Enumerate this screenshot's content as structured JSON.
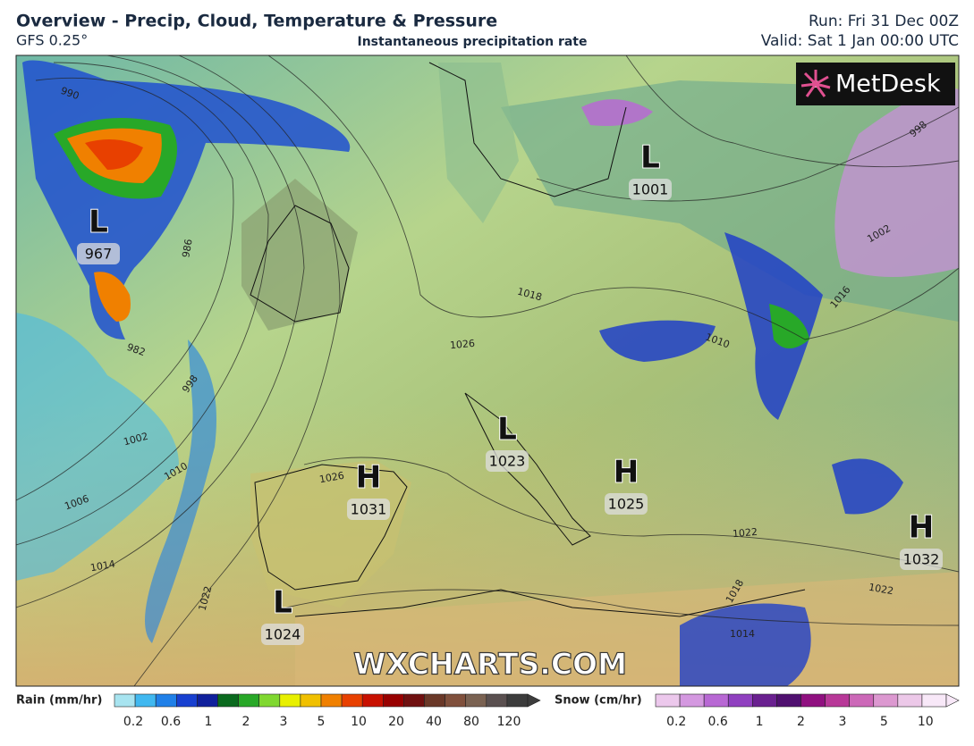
{
  "header": {
    "title": "Overview - Precip, Cloud, Temperature & Pressure",
    "model": "GFS 0.25°",
    "subtitle": "Instantaneous precipitation rate",
    "run": "Run: Fri 31 Dec 00Z",
    "valid": "Valid: Sat 1 Jan 00:00 UTC"
  },
  "logo": "MetDesk",
  "watermark": "WXCHARTS.COM",
  "pressure_centers": [
    {
      "type": "L",
      "value": 967
    },
    {
      "type": "L",
      "value": 1001
    },
    {
      "type": "L",
      "value": 1023
    },
    {
      "type": "H",
      "value": 1031
    },
    {
      "type": "H",
      "value": 1025
    },
    {
      "type": "H",
      "value": 1032
    },
    {
      "type": "L",
      "value": 1024
    }
  ],
  "isobar_labels": [
    990,
    986,
    982,
    998,
    1002,
    1010,
    1006,
    1014,
    1022,
    1026,
    1018,
    1026,
    1010,
    1016,
    1002,
    998,
    1022,
    1022,
    1018,
    1014
  ],
  "legend": {
    "rain": {
      "label": "Rain (mm/hr)",
      "ticks": [
        0.2,
        0.6,
        1,
        2,
        3,
        5,
        10,
        20,
        40,
        80,
        120
      ],
      "colors": [
        "#a8e4f0",
        "#40b8f0",
        "#2080e8",
        "#1840d0",
        "#10209c",
        "#0a6a1e",
        "#28a828",
        "#80d830",
        "#e8f000",
        "#f0c000",
        "#f08000",
        "#e84000",
        "#c81000",
        "#980000",
        "#701010",
        "#6a3828",
        "#80503c",
        "#7a6252",
        "#5a5050",
        "#3c3c3c"
      ]
    },
    "snow": {
      "label": "Snow (cm/hr)",
      "ticks": [
        0.2,
        0.6,
        1,
        2,
        3,
        5,
        10
      ],
      "colors": [
        "#ecc8ec",
        "#d498e0",
        "#b868d4",
        "#9040c0",
        "#6a2090",
        "#501070",
        "#901080",
        "#b83898",
        "#cc68b8",
        "#dc98d0",
        "#ecc8e8",
        "#f8e8f8"
      ]
    }
  }
}
